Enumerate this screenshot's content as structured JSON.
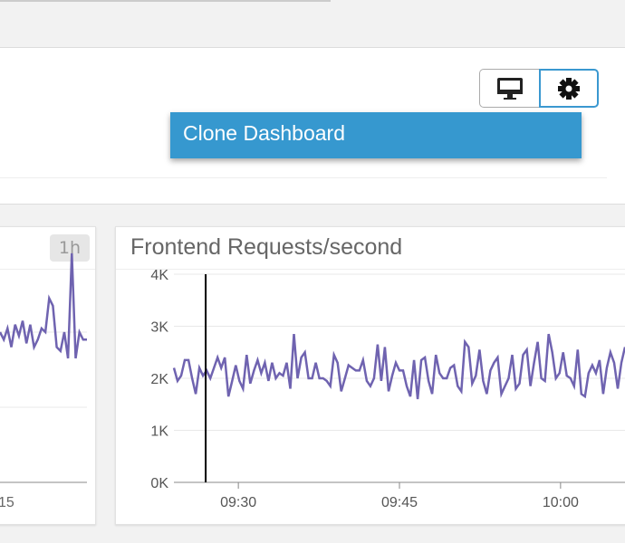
{
  "header": {
    "menu_item": "Clone Dashboard",
    "icons": [
      "monitor-icon",
      "gear-icon"
    ]
  },
  "left_panel": {
    "badge": "1h",
    "x_tick": "15"
  },
  "colors": {
    "series": "#6f63b0",
    "accent": "#3698cf"
  },
  "chart_data": [
    {
      "type": "line",
      "title": "",
      "x_tick_labels": [
        "15"
      ],
      "values": [
        2000,
        1900,
        2050,
        1800,
        2100,
        1950,
        2150,
        1850,
        2100,
        1800,
        1900,
        2050,
        2000,
        2450,
        2350,
        1800,
        1750,
        2000,
        1650,
        3050,
        1650,
        2000,
        1900,
        1900
      ]
    },
    {
      "type": "line",
      "title": "Frontend Requests/second",
      "y_ticks": [
        "0K",
        "1K",
        "2K",
        "3K",
        "4K"
      ],
      "ylim": [
        0,
        4000
      ],
      "x_ticks": [
        "09:30",
        "09:45",
        "10:00"
      ],
      "xlim": [
        "09:24",
        "10:06"
      ],
      "cursor_time": "09:27",
      "values": [
        2200,
        1950,
        2050,
        2350,
        2350,
        2000,
        1700,
        2200,
        2050,
        2150,
        2000,
        2200,
        2400,
        2200,
        2400,
        1650,
        1950,
        2250,
        1950,
        1800,
        2450,
        1900,
        2150,
        2350,
        2100,
        2300,
        1950,
        2300,
        2000,
        2100,
        2050,
        2300,
        1800,
        2850,
        2000,
        2400,
        2500,
        2000,
        2000,
        2300,
        2000,
        2000,
        1950,
        1850,
        2450,
        2300,
        1750,
        2000,
        2250,
        2200,
        2150,
        2150,
        2350,
        1950,
        1850,
        2000,
        2650,
        1950,
        2600,
        1750,
        2050,
        2300,
        2150,
        2150,
        1850,
        1650,
        2350,
        1600,
        2350,
        2400,
        1950,
        1700,
        2450,
        2100,
        2000,
        2000,
        2200,
        2250,
        1850,
        1750,
        2700,
        2600,
        1900,
        2050,
        2550,
        1950,
        1700,
        2150,
        2300,
        2400,
        1700,
        1850,
        2000,
        2450,
        1800,
        1900,
        2450,
        2550,
        1850,
        2300,
        2700,
        2000,
        1950,
        2850,
        2500,
        2000,
        2100,
        2500,
        2050,
        2000,
        1850,
        2550,
        1700,
        1650,
        2100,
        2250,
        2100,
        2350,
        1700,
        2200,
        2500,
        2300,
        1800,
        2300,
        2600
      ]
    }
  ]
}
